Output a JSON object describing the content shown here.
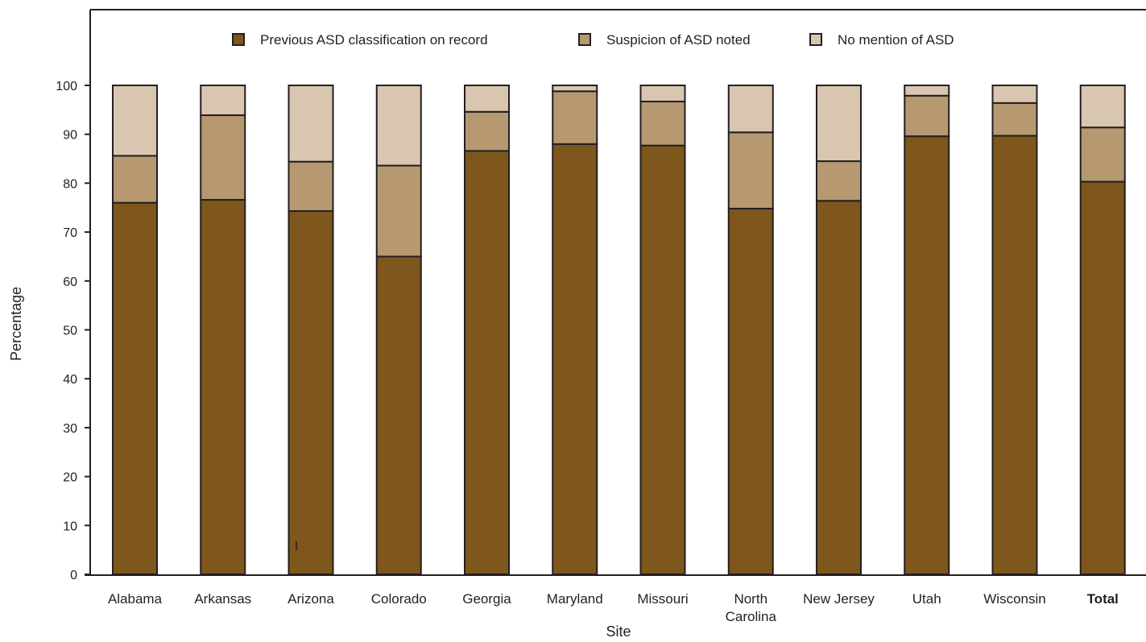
{
  "chart_data": {
    "type": "bar",
    "stacked": true,
    "xlabel": "Site",
    "ylabel": "Percentage",
    "ylim": [
      0,
      100
    ],
    "yticks": [
      0,
      10,
      20,
      30,
      40,
      50,
      60,
      70,
      80,
      90,
      100
    ],
    "grid": false,
    "legend": "top, inside plot, horizontal",
    "categories": [
      {
        "label": [
          "Alabama"
        ],
        "bold": false
      },
      {
        "label": [
          "Arkansas"
        ],
        "bold": false
      },
      {
        "label": [
          "Arizona"
        ],
        "bold": false
      },
      {
        "label": [
          "Colorado"
        ],
        "bold": false
      },
      {
        "label": [
          "Georgia"
        ],
        "bold": false
      },
      {
        "label": [
          "Maryland"
        ],
        "bold": false
      },
      {
        "label": [
          "Missouri"
        ],
        "bold": false
      },
      {
        "label": [
          "North",
          "Carolina"
        ],
        "bold": false
      },
      {
        "label": [
          "New Jersey"
        ],
        "bold": false
      },
      {
        "label": [
          "Utah"
        ],
        "bold": false
      },
      {
        "label": [
          "Wisconsin"
        ],
        "bold": false
      },
      {
        "label": [
          "Total"
        ],
        "bold": true
      }
    ],
    "series": [
      {
        "name": "Previous ASD classification on record",
        "color": "#7f561b",
        "values": [
          76.0,
          76.6,
          74.3,
          65.0,
          86.6,
          88.0,
          87.7,
          74.8,
          76.4,
          89.6,
          89.7,
          80.3
        ]
      },
      {
        "name": "Suspicion of ASD noted",
        "color": "#b69970",
        "values": [
          9.6,
          17.3,
          10.1,
          18.6,
          8.0,
          10.8,
          9.0,
          15.6,
          8.1,
          8.3,
          6.7,
          11.1
        ]
      },
      {
        "name": "No mention of ASD",
        "color": "#d9c6b0",
        "values": [
          14.4,
          6.1,
          15.6,
          16.4,
          5.4,
          1.2,
          3.3,
          9.6,
          15.5,
          2.1,
          3.6,
          8.6
        ]
      }
    ]
  }
}
